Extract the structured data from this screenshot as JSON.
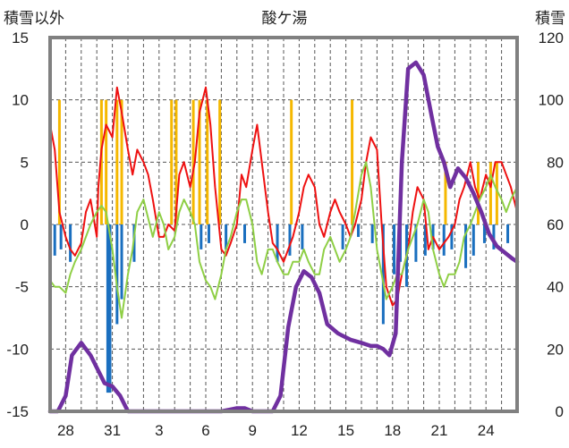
{
  "chart_data": {
    "type": "line",
    "title": "酸ケ湯",
    "left_axis_label": "積雪以外",
    "right_axis_label": "積雪",
    "left_ylim": [
      -15,
      15
    ],
    "left_yticks": [
      "15",
      "10",
      "5",
      "0",
      "-5",
      "-10",
      "-15"
    ],
    "right_ylim": [
      0,
      120
    ],
    "right_yticks": [
      "120",
      "100",
      "80",
      "60",
      "40",
      "20",
      "0"
    ],
    "xlim": [
      0,
      30
    ],
    "xticks": [
      {
        "pos": 1,
        "label": "28"
      },
      {
        "pos": 4,
        "label": "31"
      },
      {
        "pos": 7,
        "label": "3"
      },
      {
        "pos": 10,
        "label": "6"
      },
      {
        "pos": 13,
        "label": "9"
      },
      {
        "pos": 16,
        "label": "12"
      },
      {
        "pos": 19,
        "label": "15"
      },
      {
        "pos": 22,
        "label": "18"
      },
      {
        "pos": 25,
        "label": "21"
      },
      {
        "pos": 28,
        "label": "24"
      }
    ],
    "grid": true,
    "colors": {
      "temperature": "#ee1111",
      "temperature_secondary": "#8fcf45",
      "snowfall": "#f5b800",
      "precipitation": "#1a6fbf",
      "snow_depth": "#7030a0",
      "frame": "#808080"
    },
    "series": [
      {
        "axis": "left",
        "type": "line",
        "color_key": "temperature",
        "x": [
          -0.4,
          0,
          0.3,
          0.6,
          1,
          1.3,
          1.6,
          2,
          2.3,
          2.6,
          3,
          3.1,
          3.3,
          3.6,
          4,
          4.3,
          4.6,
          5,
          5.3,
          5.6,
          6,
          6.3,
          6.6,
          7,
          7.3,
          7.6,
          8,
          8.3,
          8.6,
          9,
          9.3,
          9.6,
          10,
          10.3,
          10.6,
          11,
          11.3,
          11.6,
          12,
          12.3,
          12.6,
          13,
          13.3,
          13.6,
          14,
          14.3,
          14.6,
          15,
          15.3,
          15.6,
          16,
          16.3,
          16.6,
          17,
          17.3,
          17.6,
          18,
          18.3,
          18.6,
          19,
          19.3,
          19.6,
          20,
          20.3,
          20.6,
          21,
          21.3,
          21.6,
          22,
          22.3,
          22.6,
          23,
          23.3,
          23.6,
          24,
          24.3,
          24.6,
          25,
          25.3,
          25.6,
          26,
          26.3,
          26.6,
          27,
          27.3,
          27.6,
          28,
          28.3,
          28.6,
          29,
          29.3,
          29.6,
          30
        ],
        "values": [
          9,
          8,
          6,
          1,
          -1,
          -2,
          -2.5,
          -1.5,
          1,
          2,
          -1,
          3,
          6,
          8,
          7,
          11,
          9,
          6,
          4,
          6,
          5,
          4,
          2,
          -1,
          -1,
          0,
          -0.5,
          4,
          5,
          3,
          5,
          9,
          11,
          8,
          3,
          -2,
          -2.5,
          -1.5,
          0,
          4,
          3,
          6,
          8,
          5,
          1,
          -1.5,
          -2,
          -3,
          -2,
          -1,
          1,
          3,
          4,
          3,
          0,
          -1,
          1,
          2,
          1,
          0,
          -1,
          0,
          2,
          5,
          7,
          6,
          0,
          -5,
          -6.5,
          -6,
          -4,
          -2,
          1,
          3,
          2,
          -2,
          -1,
          -2,
          -1.5,
          -1,
          0,
          2,
          3,
          5,
          3,
          2,
          4,
          3,
          5,
          5,
          4,
          3,
          1
        ]
      },
      {
        "axis": "left",
        "type": "line",
        "color_key": "temperature_secondary",
        "x": [
          -0.4,
          0,
          0.3,
          0.6,
          1,
          1.3,
          1.6,
          2,
          2.3,
          2.6,
          3,
          3.3,
          3.6,
          4,
          4.3,
          4.6,
          5,
          5.3,
          5.6,
          6,
          6.3,
          6.6,
          7,
          7.3,
          7.6,
          8,
          8.3,
          8.6,
          9,
          9.3,
          9.6,
          10,
          10.3,
          10.6,
          11,
          11.3,
          11.6,
          12,
          12.3,
          12.6,
          13,
          13.3,
          13.6,
          14,
          14.3,
          14.6,
          15,
          15.3,
          15.6,
          16,
          16.3,
          16.6,
          17,
          17.3,
          17.6,
          18,
          18.3,
          18.6,
          19,
          19.3,
          19.6,
          20,
          20.3,
          20.6,
          21,
          21.3,
          21.6,
          22,
          22.3,
          22.6,
          23,
          23.3,
          23.6,
          24,
          24.3,
          24.6,
          25,
          25.3,
          25.6,
          26,
          26.3,
          26.6,
          27,
          27.3,
          27.6,
          28,
          28.3,
          28.6,
          29,
          29.3,
          29.6,
          30
        ],
        "values": [
          -4,
          -4.5,
          -5,
          -5,
          -5.5,
          -4,
          -3,
          -2,
          -1,
          0,
          1,
          1.5,
          1,
          -2,
          -5,
          -7.5,
          -4,
          -2,
          1,
          2,
          0.5,
          -1,
          1,
          0,
          -2,
          -1,
          1,
          2,
          1,
          0,
          -3,
          -4.5,
          -5,
          -6,
          -4,
          -2,
          -1,
          1,
          2,
          2,
          0,
          -3,
          -4,
          -2,
          -2,
          -3,
          -4,
          -4,
          -3,
          -3,
          -2,
          -3,
          -4,
          -4,
          -2,
          -1,
          -2,
          -3,
          -2,
          -1,
          1,
          4,
          5,
          3,
          -2,
          -4,
          -6,
          -5,
          -4,
          -4,
          -2,
          -1,
          0,
          2,
          1,
          -2,
          -4,
          -5,
          -4,
          -4,
          -3,
          -1,
          0,
          1,
          2,
          3,
          4,
          3,
          2,
          1,
          2,
          3
        ]
      },
      {
        "axis": "left",
        "type": "bar",
        "color_key": "snowfall",
        "x": [
          0.6,
          3.3,
          3.6,
          4.3,
          4.6,
          7.8,
          8.1,
          9.2,
          9.6,
          10.1,
          10.9,
          15.5,
          19.4,
          25.4,
          27.5,
          28.3,
          28.7
        ],
        "values": [
          10,
          10,
          10,
          10,
          10,
          10,
          10,
          10,
          10,
          10,
          10,
          10,
          10,
          5,
          5,
          5,
          5
        ]
      },
      {
        "axis": "left",
        "type": "bar",
        "color_key": "precipitation",
        "x": [
          -0.2,
          0.3,
          0.7,
          1.3,
          3.7,
          3.85,
          4.3,
          4.6,
          5.4,
          9.7,
          10.2,
          11.3,
          12.5,
          14.6,
          15.4,
          16.2,
          18.8,
          19.8,
          20.7,
          21.4,
          22.1,
          22.5,
          22.9,
          23.5,
          24.1,
          24.6,
          25.3,
          25.8,
          26.7,
          27.2,
          27.9,
          28.5,
          29.4
        ],
        "values": [
          -3,
          -2.5,
          -2,
          -3,
          -13.5,
          -13.5,
          -8,
          -6,
          -3,
          -2,
          -1.5,
          -2,
          -1.5,
          -3,
          -2.5,
          -2,
          -2,
          -1,
          -1.5,
          -8,
          -4,
          -3,
          -5,
          -3,
          -2.5,
          -2,
          -2.5,
          -2,
          -3.5,
          -2.5,
          -1.5,
          -2,
          -1.5
        ]
      },
      {
        "axis": "right",
        "type": "line",
        "color_key": "snow_depth",
        "x": [
          -0.4,
          0.5,
          1,
          1.4,
          2,
          2.6,
          3,
          3.5,
          4,
          4.5,
          5,
          6,
          7,
          8,
          9,
          10,
          11,
          12,
          12.5,
          13,
          13.4,
          13.8,
          14.3,
          14.8,
          15.3,
          15.8,
          16.3,
          16.8,
          17.3,
          17.8,
          18.5,
          19.3,
          20,
          20.6,
          21,
          21.4,
          21.8,
          22.2,
          22.6,
          23,
          23.5,
          24,
          24.5,
          24.9,
          25.3,
          25.7,
          26.2,
          26.7,
          27.2,
          27.7,
          28.2,
          28.7,
          29.2,
          29.7,
          30
        ],
        "values": [
          0,
          0,
          5,
          18,
          22,
          18,
          14,
          9,
          8,
          5,
          0,
          0,
          0,
          0,
          0,
          0,
          0,
          1,
          1,
          0,
          0,
          0,
          0,
          5,
          27,
          40,
          45,
          43,
          38,
          28,
          25,
          23,
          22,
          21,
          21,
          20,
          18,
          25,
          80,
          110,
          112,
          108,
          95,
          85,
          80,
          72,
          78,
          75,
          70,
          64,
          57,
          53,
          51,
          49,
          48
        ]
      }
    ]
  }
}
